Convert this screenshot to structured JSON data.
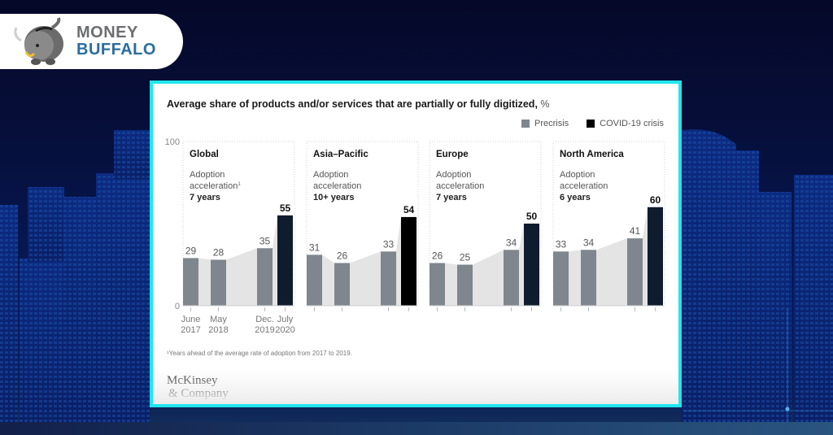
{
  "brand": {
    "line1": "MONEY",
    "line2": "BUFFALO",
    "colors": {
      "money": "#6d6e71",
      "buffalo": "#2b6d9e"
    }
  },
  "card": {
    "border_color": "#22e5ec",
    "footnote": "¹Years ahead of the average rate of adoption from 2017 to 2019.",
    "source_line1": "McKinsey",
    "source_line2": "& Company"
  },
  "chart_data": {
    "type": "bar",
    "title": "Average share of products and/or services that are partially or fully digitized,",
    "title_unit": "%",
    "ylim": [
      0,
      100
    ],
    "yticks": [
      "0",
      "100"
    ],
    "xlabel": "",
    "ylabel": "",
    "grid": false,
    "legend_position": "top-right",
    "legend": [
      {
        "label": "Precrisis",
        "color": "#7f868d"
      },
      {
        "label": "COVID-19 crisis",
        "color": "#0f1c2e"
      }
    ],
    "categories": [
      {
        "line1": "June",
        "line2": "2017"
      },
      {
        "line1": "May",
        "line2": "2018"
      },
      {
        "line1": "Dec.",
        "line2": "2019"
      },
      {
        "line1": "July",
        "line2": "2020"
      }
    ],
    "panels": [
      {
        "name": "Global",
        "subtitle_line1": "Adoption",
        "subtitle_line2": "acceleration",
        "footnote_mark": "1",
        "acceleration": "7 years",
        "values": [
          29,
          28,
          35,
          55
        ],
        "crisis_color": "#0f1c2e"
      },
      {
        "name": "Asia–Pacific",
        "subtitle_line1": "Adoption",
        "subtitle_line2": "acceleration",
        "footnote_mark": "",
        "acceleration": "10+ years",
        "values": [
          31,
          26,
          33,
          54
        ],
        "crisis_color": "#000000"
      },
      {
        "name": "Europe",
        "subtitle_line1": "Adoption",
        "subtitle_line2": "acceleration",
        "footnote_mark": "",
        "acceleration": "7 years",
        "values": [
          26,
          25,
          34,
          50
        ],
        "crisis_color": "#0f1c2e"
      },
      {
        "name": "North America",
        "subtitle_line1": "Adoption",
        "subtitle_line2": "acceleration",
        "footnote_mark": "",
        "acceleration": "6 years",
        "values": [
          33,
          34,
          41,
          60
        ],
        "crisis_color": "#0f1c2e"
      }
    ],
    "colors": {
      "precrisis": "#7f868d",
      "area": "#e4e4e4",
      "label": "#555555",
      "label_bold": "#111111"
    }
  }
}
